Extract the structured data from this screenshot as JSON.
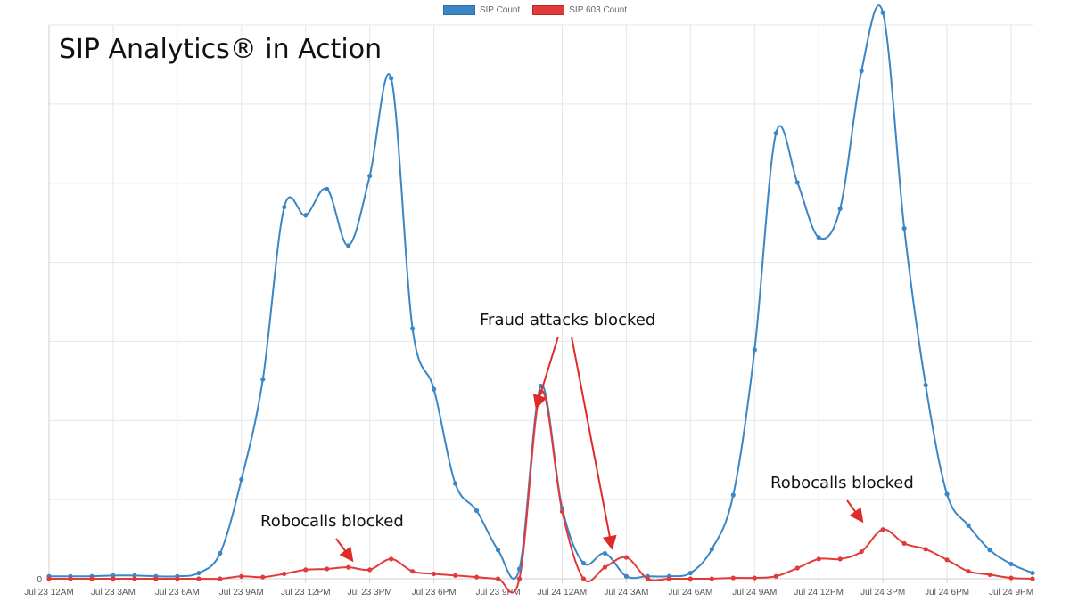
{
  "chart_data": {
    "type": "line",
    "title": "SIP Analytics® in Action",
    "y_tick_labels": [
      "0"
    ],
    "ylim": [
      0,
      675
    ],
    "grid": true,
    "legend_position": "top-center",
    "x_tick_labels": [
      "Jul 23 12AM",
      "Jul 23 3AM",
      "Jul 23 6AM",
      "Jul 23 9AM",
      "Jul 23 12PM",
      "Jul 23 3PM",
      "Jul 23 6PM",
      "Jul 23 9PM",
      "Jul 24 12AM",
      "Jul 24 3AM",
      "Jul 24 6AM",
      "Jul 24 9AM",
      "Jul 24 12PM",
      "Jul 24 3PM",
      "Jul 24 6PM",
      "Jul 24 9PM"
    ],
    "series": [
      {
        "name": "SIP Count",
        "color": "#3b86c4",
        "values": [
          3,
          3,
          3,
          4,
          4,
          3,
          3,
          7,
          31,
          121,
          243,
          453,
          443,
          475,
          406,
          491,
          610,
          305,
          231,
          116,
          83,
          35,
          12,
          235,
          86,
          19,
          31,
          3,
          3,
          3,
          7,
          36,
          102,
          279,
          543,
          483,
          416,
          451,
          619,
          690,
          427,
          236,
          103,
          65,
          35,
          18,
          7
        ]
      },
      {
        "name": "SIP 603 Count",
        "color": "#e23a3a",
        "values": [
          0,
          0,
          0,
          0,
          0,
          0,
          0,
          0,
          0,
          3,
          2,
          6,
          11,
          12,
          14,
          11,
          24,
          9,
          6,
          4,
          2,
          0,
          0,
          228,
          82,
          0,
          14,
          26,
          0,
          0,
          0,
          0,
          1,
          1,
          3,
          13,
          24,
          24,
          33,
          60,
          43,
          36,
          23,
          9,
          5,
          1,
          0
        ]
      }
    ],
    "annotations": [
      {
        "text": "Fraud attacks blocked"
      },
      {
        "text": "Robocalls blocked"
      },
      {
        "text": "Robocalls blocked"
      }
    ]
  }
}
